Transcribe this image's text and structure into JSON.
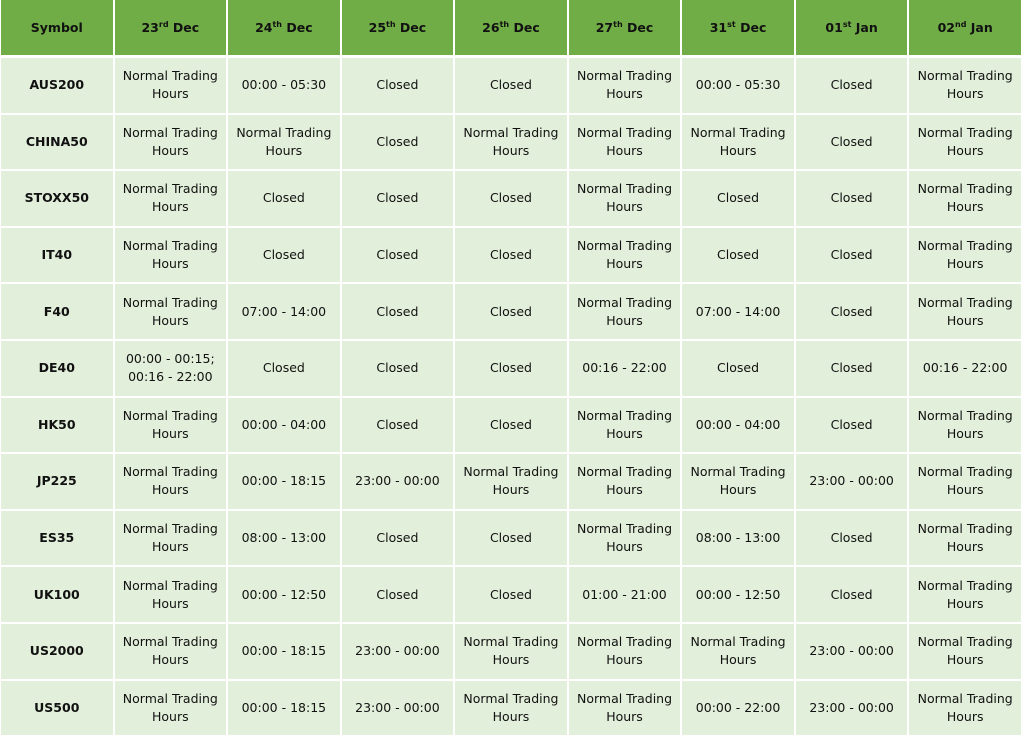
{
  "header": {
    "symbol": "Symbol",
    "dates": [
      {
        "day": "23",
        "suffix": "rd",
        "month": "Dec"
      },
      {
        "day": "24",
        "suffix": "th",
        "month": "Dec"
      },
      {
        "day": "25",
        "suffix": "th",
        "month": "Dec"
      },
      {
        "day": "26",
        "suffix": "th",
        "month": "Dec"
      },
      {
        "day": "27",
        "suffix": "th",
        "month": "Dec"
      },
      {
        "day": "31",
        "suffix": "st",
        "month": "Dec"
      },
      {
        "day": "01",
        "suffix": "st",
        "month": "Jan"
      },
      {
        "day": "02",
        "suffix": "nd",
        "month": "Jan"
      }
    ]
  },
  "colors": {
    "header_bg": "#70AD47",
    "row_bg": "#E2EFDA"
  },
  "rows": [
    {
      "symbol": "AUS200",
      "cells": [
        "Normal Trading Hours",
        "00:00 - 05:30",
        "Closed",
        "Closed",
        "Normal Trading Hours",
        "00:00 - 05:30",
        "Closed",
        "Normal Trading Hours"
      ]
    },
    {
      "symbol": "CHINA50",
      "cells": [
        "Normal Trading Hours",
        "Normal Trading Hours",
        "Closed",
        "Normal Trading Hours",
        "Normal Trading Hours",
        "Normal Trading Hours",
        "Closed",
        "Normal Trading Hours"
      ]
    },
    {
      "symbol": "STOXX50",
      "cells": [
        "Normal Trading Hours",
        "Closed",
        "Closed",
        "Closed",
        "Normal Trading Hours",
        "Closed",
        "Closed",
        "Normal Trading Hours"
      ]
    },
    {
      "symbol": "IT40",
      "cells": [
        "Normal Trading Hours",
        "Closed",
        "Closed",
        "Closed",
        "Normal Trading Hours",
        "Closed",
        "Closed",
        "Normal Trading Hours"
      ]
    },
    {
      "symbol": "F40",
      "cells": [
        "Normal Trading Hours",
        "07:00 - 14:00",
        "Closed",
        "Closed",
        "Normal Trading Hours",
        "07:00 - 14:00",
        "Closed",
        "Normal Trading Hours"
      ]
    },
    {
      "symbol": "DE40",
      "cells": [
        "00:00 - 00:15; 00:16 - 22:00",
        "Closed",
        "Closed",
        "Closed",
        "00:16 - 22:00",
        "Closed",
        "Closed",
        "00:16 - 22:00"
      ]
    },
    {
      "symbol": "HK50",
      "cells": [
        "Normal Trading Hours",
        "00:00 - 04:00",
        "Closed",
        "Closed",
        "Normal Trading Hours",
        "00:00 - 04:00",
        "Closed",
        "Normal Trading Hours"
      ]
    },
    {
      "symbol": "JP225",
      "cells": [
        "Normal Trading Hours",
        "00:00 - 18:15",
        "23:00 - 00:00",
        "Normal Trading Hours",
        "Normal Trading Hours",
        "Normal Trading Hours",
        "23:00 - 00:00",
        "Normal Trading Hours"
      ]
    },
    {
      "symbol": "ES35",
      "cells": [
        "Normal Trading Hours",
        "08:00 - 13:00",
        "Closed",
        "Closed",
        "Normal Trading Hours",
        "08:00 - 13:00",
        "Closed",
        "Normal Trading Hours"
      ]
    },
    {
      "symbol": "UK100",
      "cells": [
        "Normal Trading Hours",
        "00:00 - 12:50",
        "Closed",
        "Closed",
        "01:00 - 21:00",
        "00:00 - 12:50",
        "Closed",
        "Normal Trading Hours"
      ]
    },
    {
      "symbol": "US2000",
      "cells": [
        "Normal Trading Hours",
        "00:00 - 18:15",
        "23:00 - 00:00",
        "Normal Trading Hours",
        "Normal Trading Hours",
        "Normal Trading Hours",
        "23:00 - 00:00",
        "Normal Trading Hours"
      ]
    },
    {
      "symbol": "US500",
      "cells": [
        "Normal Trading Hours",
        "00:00 - 18:15",
        "23:00 - 00:00",
        "Normal Trading Hours",
        "Normal Trading Hours",
        "00:00 - 22:00",
        "23:00 - 00:00",
        "Normal Trading Hours"
      ]
    }
  ]
}
